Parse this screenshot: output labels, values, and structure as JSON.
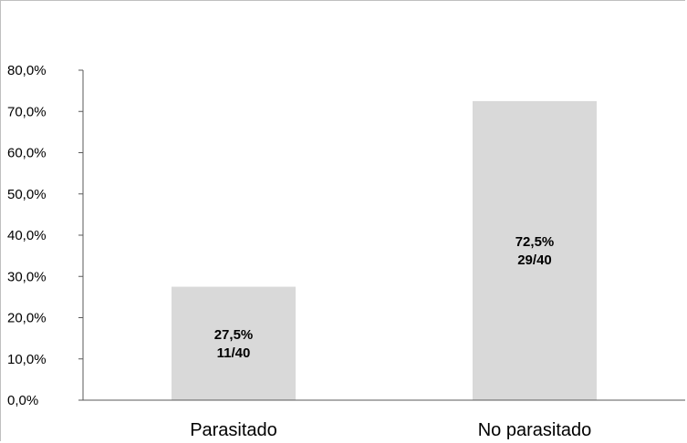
{
  "chart_data": {
    "type": "bar",
    "categories": [
      "Parasitado",
      "No parasitado"
    ],
    "values": [
      27.5,
      72.5
    ],
    "data_labels": [
      [
        "27,5%",
        "11/40"
      ],
      [
        "72,5%",
        "29/40"
      ]
    ],
    "y_tick_labels": [
      "0,0%",
      "10,0%",
      "20,0%",
      "30,0%",
      "40,0%",
      "50,0%",
      "60,0%",
      "70,0%",
      "80,0%"
    ],
    "ylim": [
      0,
      80
    ],
    "title": "",
    "xlabel": "",
    "ylabel": "",
    "grid": false,
    "legend": false,
    "bar_color": "#d9d9d9"
  }
}
